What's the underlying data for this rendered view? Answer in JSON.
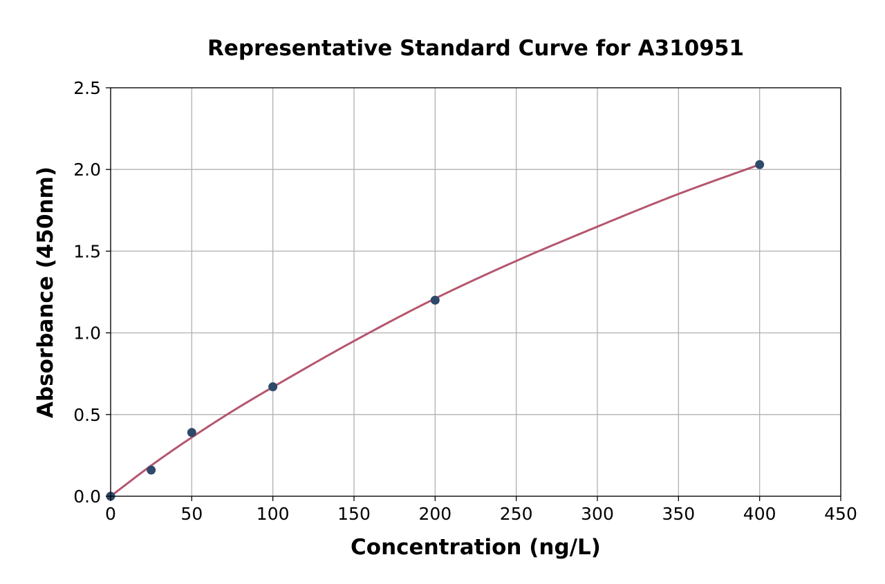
{
  "chart_data": {
    "type": "scatter",
    "title": "Representative Standard Curve for A310951",
    "xlabel": "Concentration (ng/L)",
    "ylabel": "Absorbance (450nm)",
    "xlim": [
      0,
      450
    ],
    "ylim": [
      0,
      2.5
    ],
    "xticks": [
      "0",
      "50",
      "100",
      "150",
      "200",
      "250",
      "300",
      "350",
      "400",
      "450"
    ],
    "yticks": [
      "0.0",
      "0.5",
      "1.0",
      "1.5",
      "2.0",
      "2.5"
    ],
    "grid": true,
    "legend": "none",
    "series": [
      {
        "kind": "points",
        "x": [
          0,
          25,
          50,
          100,
          200,
          400
        ],
        "y": [
          0.0,
          0.16,
          0.39,
          0.67,
          1.2,
          2.03
        ],
        "color": "#2e4a6b"
      },
      {
        "kind": "fit-curve",
        "x": [
          0,
          25,
          50,
          75,
          100,
          150,
          200,
          250,
          300,
          350,
          400
        ],
        "y": [
          0.0,
          0.188,
          0.36,
          0.52,
          0.668,
          0.95,
          1.21,
          1.44,
          1.65,
          1.85,
          2.03
        ],
        "color": "#b5566e"
      }
    ],
    "colors": {
      "points": "#2e4a6b",
      "curve": "#b5566e",
      "grid": "#b0b0b0",
      "axes": "#000000"
    }
  }
}
